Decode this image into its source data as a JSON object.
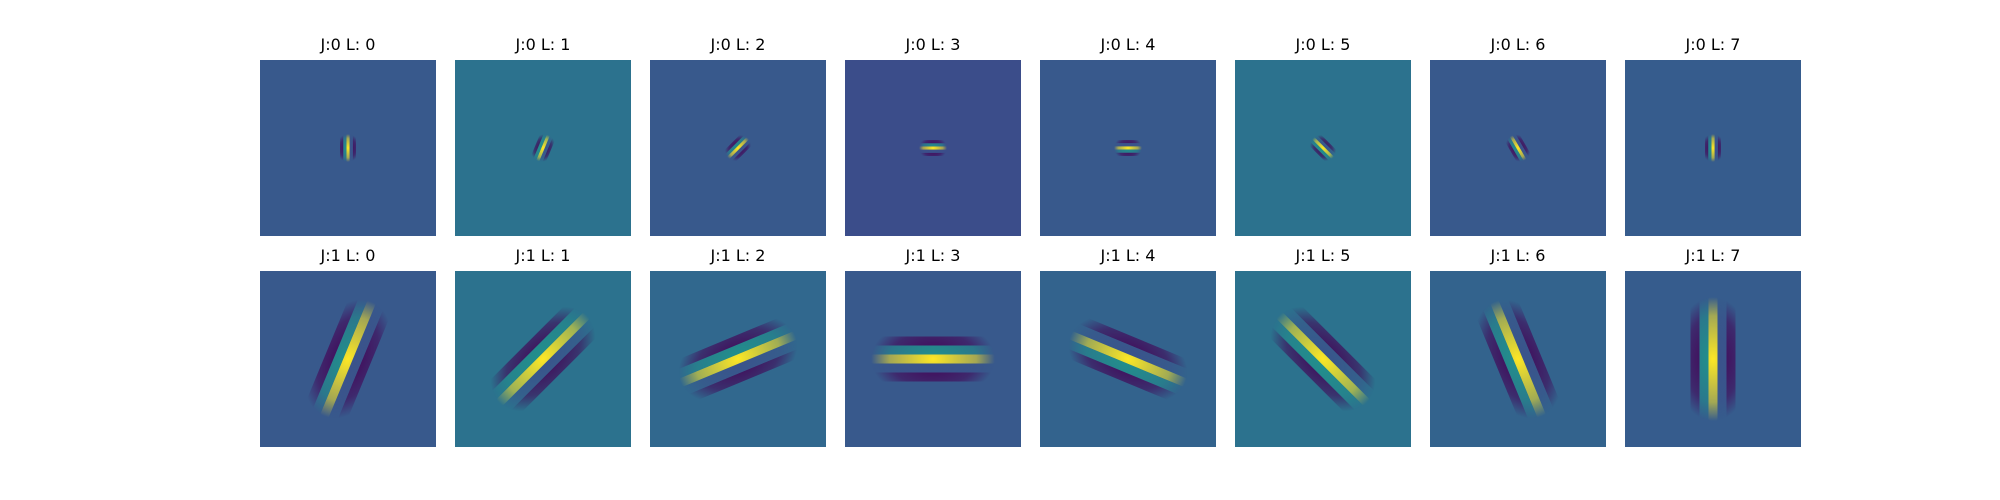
{
  "figure": {
    "grid": "2x8",
    "colormap": "viridis",
    "axes_visible": false
  },
  "chart_data": [
    {
      "type": "heatmap",
      "title": "J:0 L: 0",
      "J": 0,
      "L": 0,
      "background_color": "#38598c",
      "pattern": "gabor",
      "orientation_deg": 90
    },
    {
      "type": "heatmap",
      "title": "J:0 L: 1",
      "J": 0,
      "L": 1,
      "background_color": "#2c728e",
      "pattern": "gabor",
      "orientation_deg": 112.5
    },
    {
      "type": "heatmap",
      "title": "J:0 L: 2",
      "J": 0,
      "L": 2,
      "background_color": "#38598c",
      "pattern": "gabor",
      "orientation_deg": 135
    },
    {
      "type": "heatmap",
      "title": "J:0 L: 3",
      "J": 0,
      "L": 3,
      "background_color": "#3b4d8a",
      "pattern": "gabor",
      "orientation_deg": 180
    },
    {
      "type": "heatmap",
      "title": "J:0 L: 4",
      "J": 0,
      "L": 4,
      "background_color": "#38598c",
      "pattern": "gabor",
      "orientation_deg": 0
    },
    {
      "type": "heatmap",
      "title": "J:0 L: 5",
      "J": 0,
      "L": 5,
      "background_color": "#2c728e",
      "pattern": "gabor",
      "orientation_deg": 45
    },
    {
      "type": "heatmap",
      "title": "J:0 L: 6",
      "J": 0,
      "L": 6,
      "background_color": "#38598c",
      "pattern": "gabor",
      "orientation_deg": 60
    },
    {
      "type": "heatmap",
      "title": "J:0 L: 7",
      "J": 0,
      "L": 7,
      "background_color": "#365c8d",
      "pattern": "gabor",
      "orientation_deg": 90
    },
    {
      "type": "heatmap",
      "title": "J:1 L: 0",
      "J": 1,
      "L": 0,
      "background_color": "#38598c",
      "pattern": "gabor",
      "orientation_deg": 112.5
    },
    {
      "type": "heatmap",
      "title": "J:1 L: 1",
      "J": 1,
      "L": 1,
      "background_color": "#2c728e",
      "pattern": "gabor",
      "orientation_deg": 135
    },
    {
      "type": "heatmap",
      "title": "J:1 L: 2",
      "J": 1,
      "L": 2,
      "background_color": "#31688e",
      "pattern": "gabor",
      "orientation_deg": 157.5
    },
    {
      "type": "heatmap",
      "title": "J:1 L: 3",
      "J": 1,
      "L": 3,
      "background_color": "#38598c",
      "pattern": "gabor",
      "orientation_deg": 180
    },
    {
      "type": "heatmap",
      "title": "J:1 L: 4",
      "J": 1,
      "L": 4,
      "background_color": "#33638d",
      "pattern": "gabor",
      "orientation_deg": 22.5
    },
    {
      "type": "heatmap",
      "title": "J:1 L: 5",
      "J": 1,
      "L": 5,
      "background_color": "#2c728e",
      "pattern": "gabor",
      "orientation_deg": 45
    },
    {
      "type": "heatmap",
      "title": "J:1 L: 6",
      "J": 1,
      "L": 6,
      "background_color": "#33638d",
      "pattern": "gabor",
      "orientation_deg": 67.5
    },
    {
      "type": "heatmap",
      "title": "J:1 L: 7",
      "J": 1,
      "L": 7,
      "background_color": "#365c8d",
      "pattern": "gabor",
      "orientation_deg": 90
    }
  ]
}
